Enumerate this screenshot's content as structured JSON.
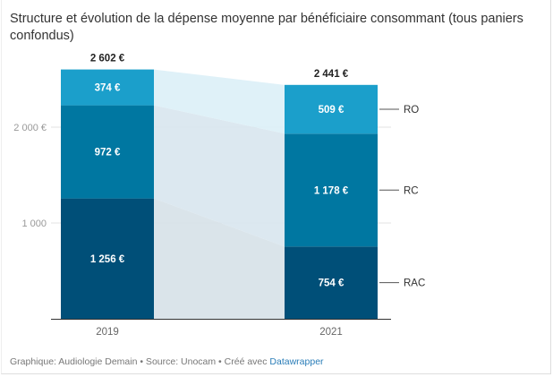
{
  "chart_data": {
    "type": "stacked-bar",
    "title": "Structure et évolution de la dépense moyenne par bénéficiaire consommant (tous paniers confondus)",
    "categories": [
      "2019",
      "2021"
    ],
    "series": [
      {
        "name": "RAC",
        "values": [
          1256,
          754
        ],
        "labels": [
          "1 256 €",
          "754 €"
        ],
        "color": "#004f78"
      },
      {
        "name": "RC",
        "values": [
          972,
          1178
        ],
        "labels": [
          "972 €",
          "1 178 €"
        ],
        "color": "#0077a1"
      },
      {
        "name": "RO",
        "values": [
          374,
          509
        ],
        "labels": [
          "374 €",
          "509 €"
        ],
        "color": "#1b9fcb"
      }
    ],
    "totals": [
      2602,
      2441
    ],
    "total_labels": [
      "2 602 €",
      "2 441 €"
    ],
    "yticks": [
      {
        "value": 1000,
        "label": "1 000"
      },
      {
        "value": 2000,
        "label": "2 000 €"
      }
    ],
    "ylim": [
      0,
      2602
    ],
    "grid": true,
    "legend": "right-inline"
  },
  "footer": {
    "text": "Graphique: Audiologie Demain • Source: Unocam • Créé avec ",
    "link": "Datawrapper"
  }
}
